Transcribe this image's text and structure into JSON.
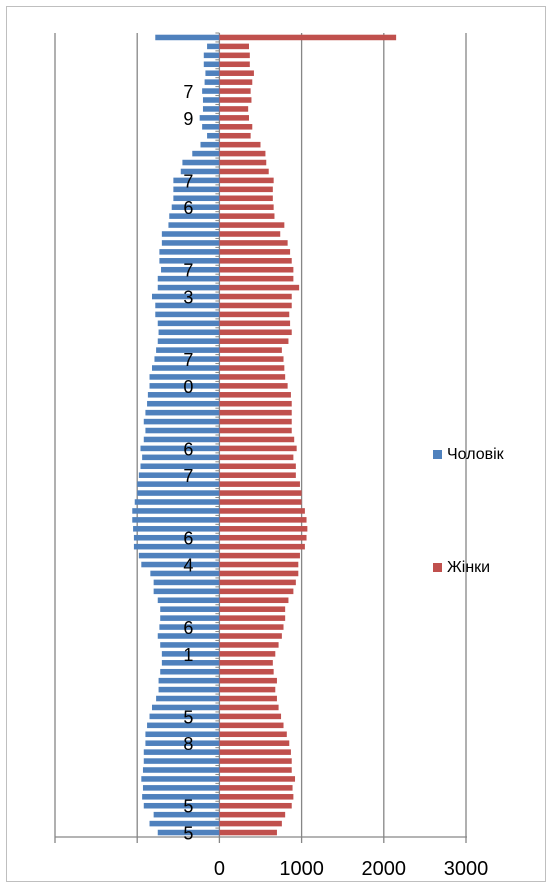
{
  "chart_data": {
    "type": "bar",
    "orientation": "horizontal",
    "xlim": [
      -2000,
      3000
    ],
    "xticks": [
      -2000,
      -1000,
      0,
      1000,
      2000,
      3000
    ],
    "xtick_labels": [
      "",
      "",
      "0",
      "1000",
      "2000",
      "3000"
    ],
    "grid": true,
    "legend_position": "right",
    "category_labels_visible": [
      "5",
      "5",
      "8",
      "5",
      "1",
      "6",
      "4",
      "6",
      "7",
      "6",
      "0",
      "7",
      "3",
      "7",
      "6",
      "7",
      "9",
      "7"
    ],
    "series": [
      {
        "name": "Чоловік",
        "color": "#4f81bd",
        "values": [
          -750,
          -850,
          -800,
          -920,
          -940,
          -930,
          -950,
          -930,
          -920,
          -920,
          -900,
          -900,
          -880,
          -850,
          -820,
          -770,
          -740,
          -740,
          -720,
          -700,
          -700,
          -720,
          -750,
          -730,
          -720,
          -720,
          -750,
          -800,
          -800,
          -840,
          -950,
          -980,
          -1040,
          -1040,
          -1050,
          -1060,
          -1060,
          -1030,
          -1000,
          -1000,
          -980,
          -960,
          -940,
          -960,
          -920,
          -900,
          -920,
          -900,
          -880,
          -870,
          -850,
          -850,
          -820,
          -790,
          -770,
          -750,
          -740,
          -750,
          -780,
          -780,
          -820,
          -750,
          -750,
          -710,
          -730,
          -730,
          -700,
          -700,
          -620,
          -610,
          -580,
          -560,
          -560,
          -560,
          -470,
          -450,
          -330,
          -230,
          -150,
          -210,
          -240,
          -200,
          -200,
          -210,
          -180,
          -170,
          -190,
          -190,
          -150,
          -780
        ],
        "labels": [
          "5",
          "",
          "",
          "5",
          "",
          "",
          "",
          "",
          "",
          "",
          "8",
          "",
          "",
          "5",
          "",
          "",
          "",
          "",
          "",
          "",
          "1",
          "",
          "",
          "6",
          "",
          "",
          "",
          "",
          "",
          "",
          "4",
          "",
          "",
          "6",
          "",
          "",
          "",
          "",
          "",
          "",
          "7",
          "",
          "",
          "6",
          "",
          "",
          "",
          "",
          "",
          "",
          "0",
          "",
          "",
          "7",
          "",
          "",
          "",
          "",
          "",
          "",
          "3",
          "",
          "",
          "7",
          "",
          "",
          "",
          "",
          "",
          "",
          "6",
          "",
          "",
          "7",
          "",
          "",
          "",
          "",
          "",
          "",
          "9",
          "",
          "",
          "7",
          "",
          "",
          "",
          "",
          "",
          ""
        ]
      },
      {
        "name": "Жінки",
        "color": "#c0504d",
        "values": [
          700,
          760,
          800,
          880,
          900,
          890,
          920,
          880,
          880,
          870,
          850,
          820,
          780,
          750,
          720,
          700,
          680,
          700,
          660,
          650,
          680,
          720,
          760,
          780,
          800,
          800,
          840,
          900,
          930,
          960,
          960,
          980,
          1040,
          1060,
          1070,
          1060,
          1040,
          1000,
          1000,
          980,
          930,
          930,
          900,
          940,
          910,
          880,
          880,
          880,
          880,
          870,
          830,
          800,
          790,
          780,
          760,
          840,
          880,
          860,
          850,
          880,
          880,
          970,
          900,
          900,
          880,
          860,
          830,
          740,
          790,
          670,
          660,
          650,
          650,
          660,
          600,
          570,
          560,
          500,
          380,
          400,
          360,
          350,
          390,
          380,
          400,
          420,
          370,
          370,
          360,
          2150
        ]
      }
    ]
  }
}
